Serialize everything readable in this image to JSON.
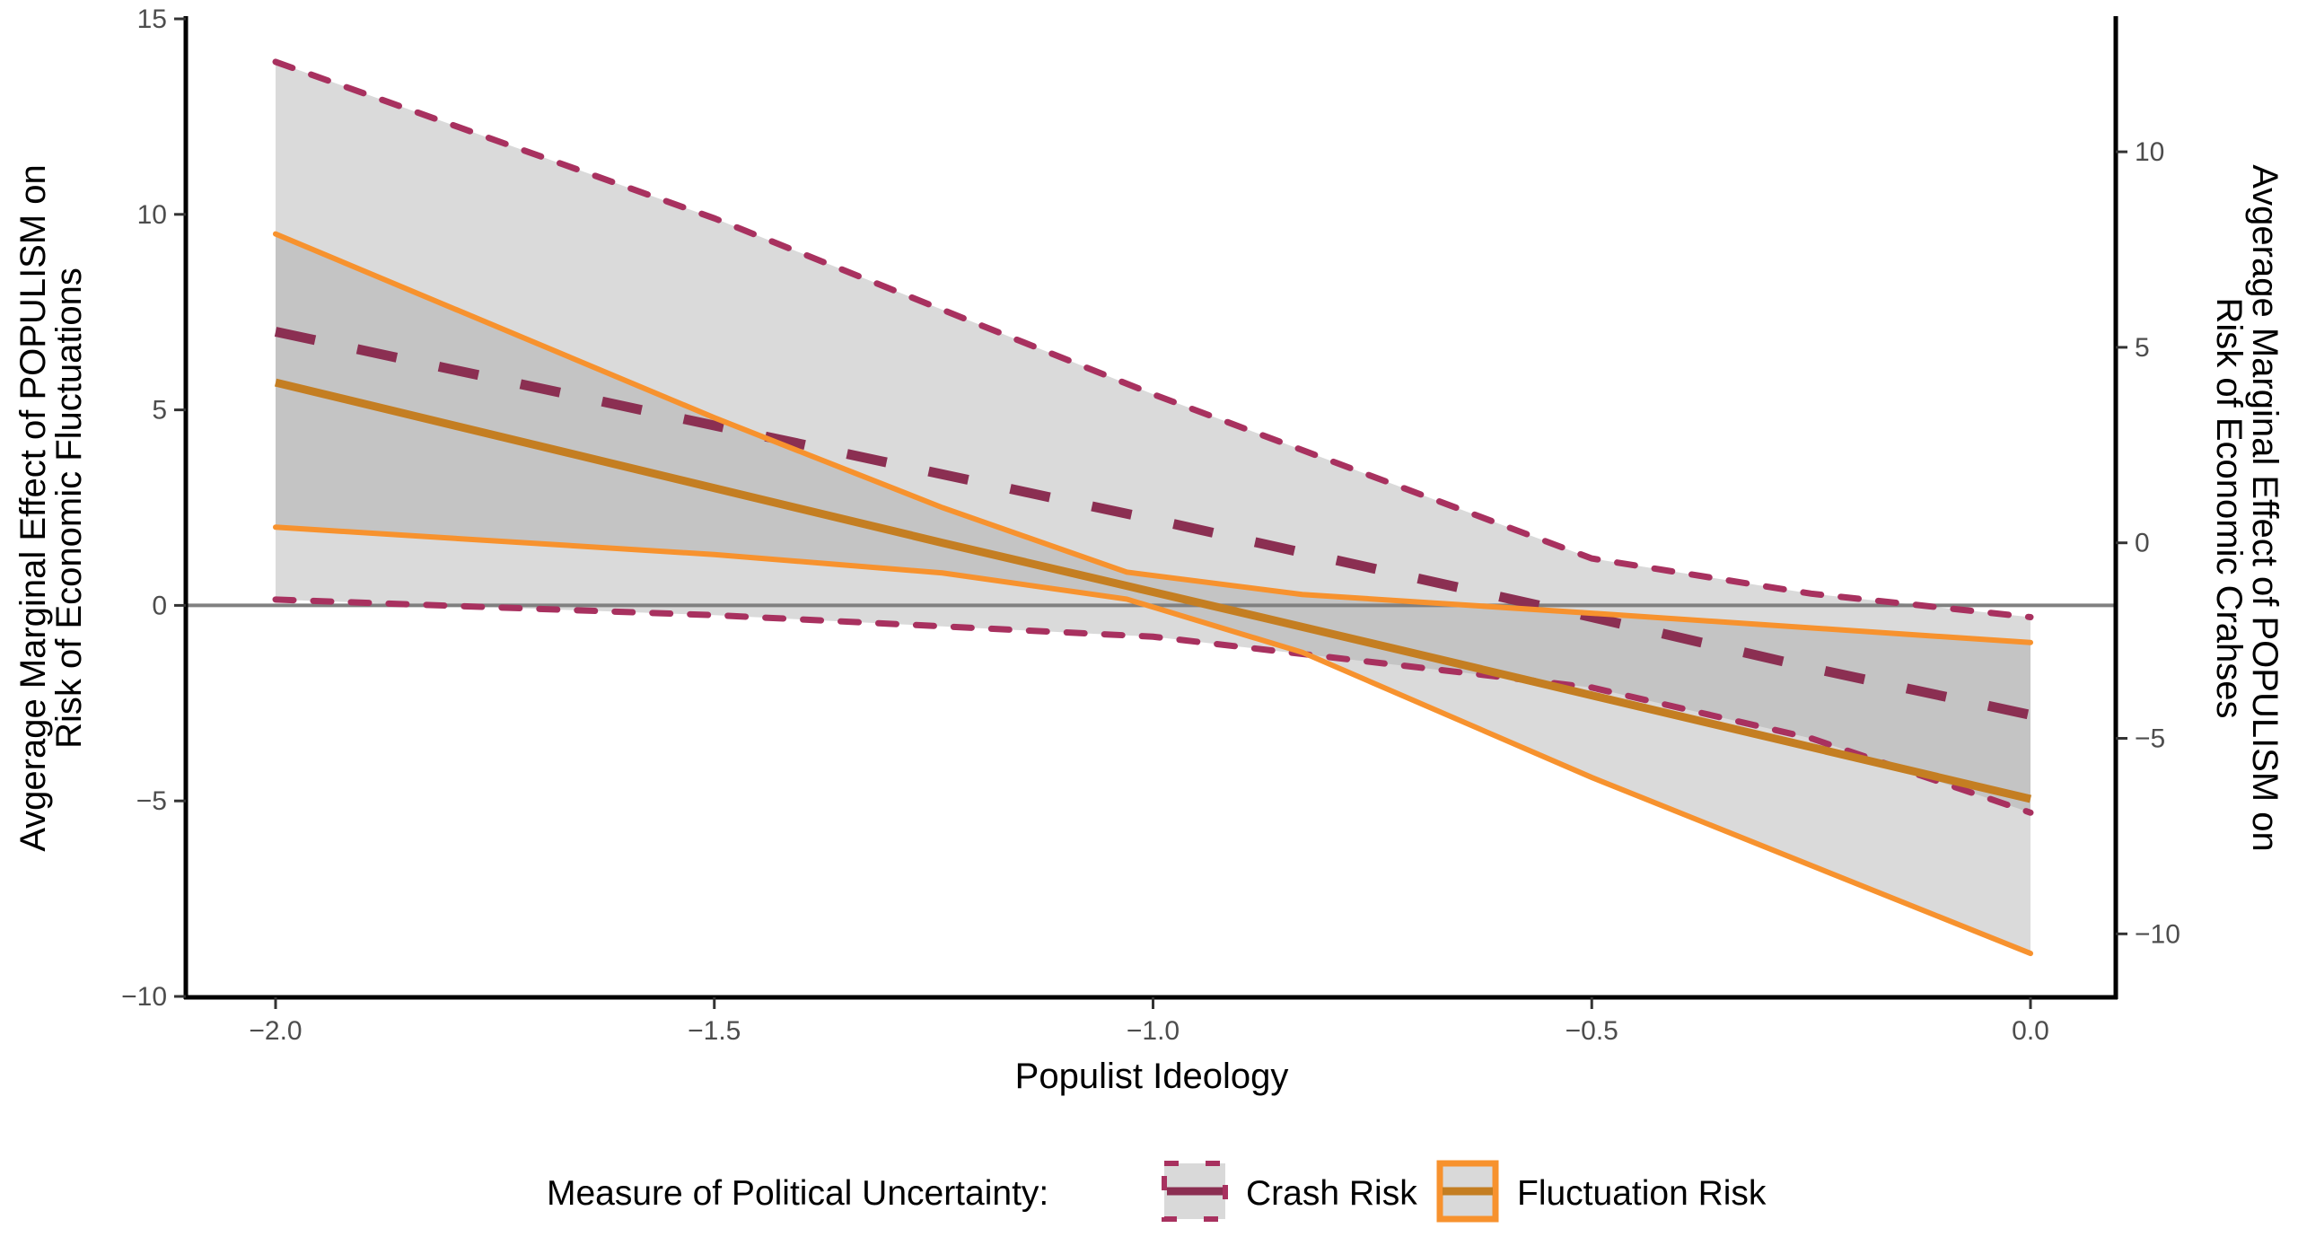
{
  "chart_data": {
    "type": "line",
    "title": "",
    "xlabel": "Populist Ideology",
    "ylabel": "Avgerage Marginal Effect of POPULISM on\nRisk of Economic Fluctuations",
    "ylabel_lines": [
      "Avgerage Marginal Effect of POPULISM on",
      "Risk of Economic Fluctuations"
    ],
    "y2label_lines": [
      "Avgerage Marginal Effect of POPULISM on",
      "Risk of Economic Crahses"
    ],
    "xlim": [
      -2.1,
      0.1
    ],
    "ylim": [
      -10,
      15
    ],
    "y2lim": [
      -11.6,
      13.4
    ],
    "x_ticks": [
      -2.0,
      -1.5,
      -1.0,
      -0.5,
      0.0
    ],
    "x_tick_labels": [
      "−2.0",
      "−1.5",
      "−1.0",
      "−0.5",
      "0.0"
    ],
    "y_ticks": [
      15,
      10,
      5,
      0,
      -5,
      -10
    ],
    "y_tick_labels": [
      "15",
      "10",
      "5",
      "0",
      "−5",
      "−10"
    ],
    "y2_ticks": [
      10,
      5,
      0,
      -5,
      -10
    ],
    "y2_tick_labels": [
      "10",
      "5",
      "0",
      "−5",
      "−10"
    ],
    "reference_line_y": 0,
    "grid": false,
    "legend": {
      "position": "bottom",
      "title": "Measure of Political Uncertainty:",
      "entries": [
        "Crash Risk",
        "Fluctuation Risk"
      ]
    },
    "series": [
      {
        "name": "Crash Risk",
        "axis": "right",
        "color": "#8b2f52",
        "ci_color": "#a8315f",
        "linestyle": "dashed",
        "x": [
          -2.0,
          -1.5,
          -1.0,
          -0.5,
          -0.25,
          0.0
        ],
        "mean": [
          5.4,
          3.0,
          0.6,
          -1.9,
          -3.2,
          -4.4
        ],
        "lower": [
          -1.45,
          -1.85,
          -2.4,
          -3.7,
          -5.0,
          -6.9
        ],
        "upper": [
          12.3,
          8.3,
          3.8,
          -0.4,
          -1.3,
          -1.9
        ]
      },
      {
        "name": "Fluctuation Risk",
        "axis": "left",
        "color": "#c47e22",
        "ci_color": "#f7922e",
        "linestyle": "solid",
        "x": [
          -2.0,
          -1.5,
          -1.24,
          -1.03,
          -0.83,
          -0.5,
          0.0
        ],
        "mean": [
          5.7,
          3.0,
          1.6,
          0.5,
          -0.55,
          -2.3,
          -4.95
        ],
        "lower": [
          2.0,
          1.3,
          0.83,
          0.16,
          -1.2,
          -4.4,
          -8.9
        ],
        "upper": [
          9.5,
          4.8,
          2.5,
          0.85,
          0.28,
          -0.2,
          -0.95
        ]
      }
    ],
    "colors": {
      "ribbon": "#d9d9d9",
      "ribbon_overlap": "#b3b3b3",
      "zero_line": "#808080",
      "axis": "#000000"
    }
  }
}
